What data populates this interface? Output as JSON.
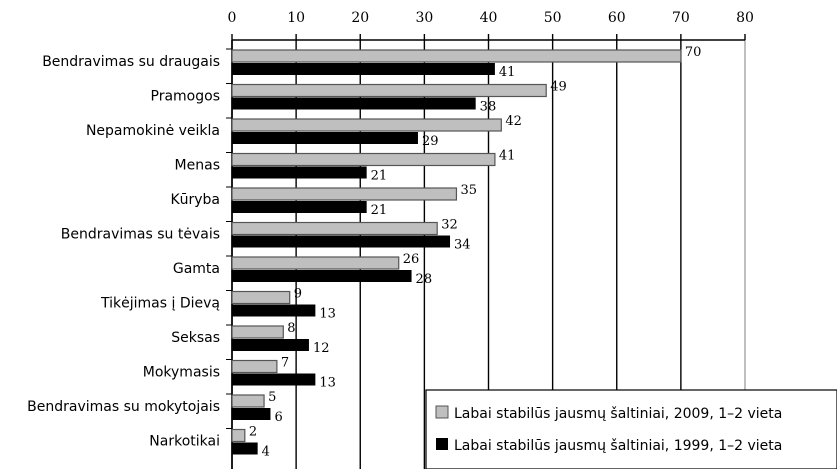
{
  "chart_data": {
    "type": "bar",
    "orientation": "horizontal",
    "xlim": [
      0,
      80
    ],
    "x_ticks": [
      0,
      10,
      20,
      30,
      40,
      50,
      60,
      70,
      80
    ],
    "x_axis_position": "top",
    "grid": true,
    "legend_position": "bottom-right",
    "categories": [
      "Bendravimas su draugais",
      "Pramogos",
      "Nepamokinė veikla",
      "Menas",
      "Kūryba",
      "Bendravimas su tėvais",
      "Gamta",
      "Tikėjimas į Dievą",
      "Seksas",
      "Mokymasis",
      "Bendravimas su mokytojais",
      "Narkotikai"
    ],
    "series": [
      {
        "name": "Labai stabilūs jausmų šaltiniai, 2009, 1–2 vieta",
        "color": "#bfbfbf",
        "values": [
          70,
          49,
          42,
          41,
          35,
          32,
          26,
          9,
          8,
          7,
          5,
          2
        ]
      },
      {
        "name": "Labai stabilūs jausmų šaltiniai, 1999, 1–2 vieta",
        "color": "#000000",
        "values": [
          41,
          38,
          29,
          21,
          21,
          34,
          28,
          13,
          12,
          13,
          6,
          4
        ]
      }
    ]
  }
}
